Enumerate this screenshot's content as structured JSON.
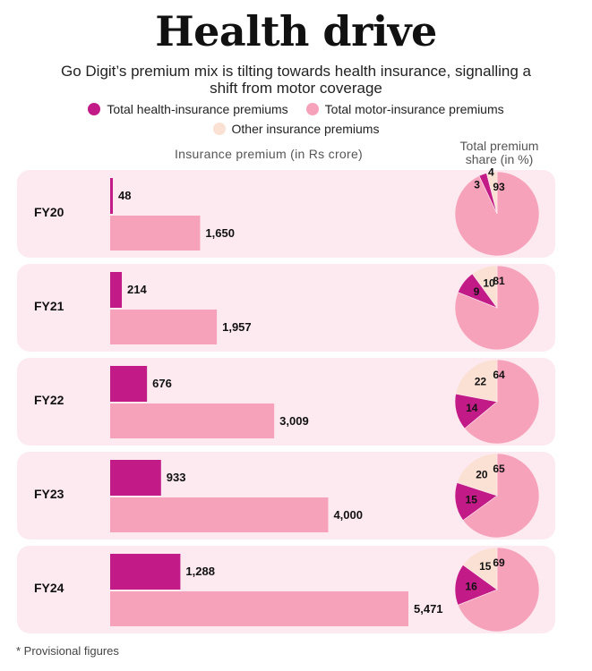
{
  "title": "Health drive",
  "subtitle": "Go Digit’s premium mix is tilting towards health insurance, signalling a shift from motor coverage",
  "legend": [
    {
      "label": "Total health-insurance premiums",
      "color": "#c21b87"
    },
    {
      "label": "Total motor-insurance premiums",
      "color": "#f7a2bb"
    },
    {
      "label": "Other insurance premiums",
      "color": "#fbe1d4"
    }
  ],
  "axis_caption": "Insurance premium (in Rs crore)",
  "share_caption": "Total premium share (in %)",
  "footnote": "* Provisional figures",
  "colors": {
    "health": "#c21b87",
    "motor": "#f7a2bb",
    "other": "#fbe1d4",
    "panel": "#fdeaf0"
  },
  "chart_data": {
    "type": "bar",
    "orientation": "horizontal",
    "categories": [
      "FY20",
      "FY21",
      "FY22",
      "FY23",
      "FY24"
    ],
    "series": [
      {
        "name": "Total health-insurance premiums",
        "values": [
          48,
          214,
          676,
          933,
          1288
        ],
        "labels": [
          "48",
          "214",
          "676",
          "933",
          "1,288"
        ]
      },
      {
        "name": "Total motor-insurance premiums",
        "values": [
          1650,
          1957,
          3009,
          4000,
          5471
        ],
        "labels": [
          "1,650",
          "1,957",
          "3,009",
          "4,000",
          "5,471"
        ]
      }
    ],
    "xlim": [
      0,
      5471
    ],
    "pies": [
      {
        "category": "FY20",
        "health": 3,
        "motor": 93,
        "other": 4
      },
      {
        "category": "FY21",
        "health": 9,
        "motor": 81,
        "other": 10
      },
      {
        "category": "FY22",
        "health": 14,
        "motor": 64,
        "other": 22
      },
      {
        "category": "FY23",
        "health": 15,
        "motor": 65,
        "other": 20
      },
      {
        "category": "FY24",
        "health": 16,
        "motor": 69,
        "other": 15
      }
    ]
  }
}
